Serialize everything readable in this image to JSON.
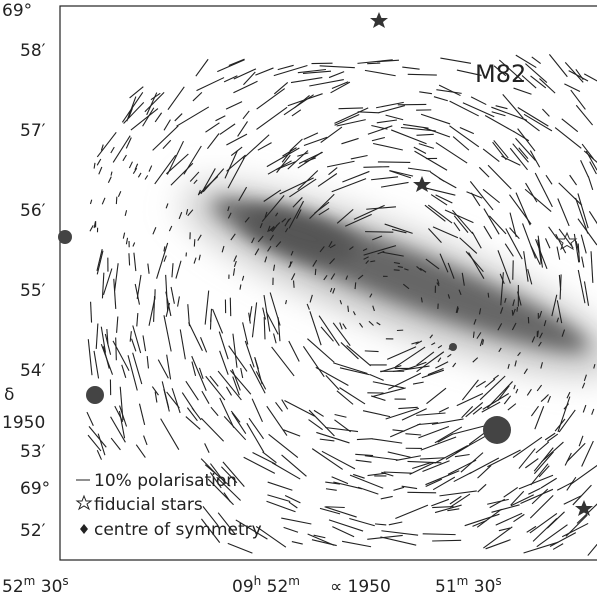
{
  "figure": {
    "title": "M82",
    "y_labels": [
      "69°",
      "58′",
      "57′",
      "56′",
      "55′",
      "54′",
      "δ",
      "1950",
      "53′",
      "69°",
      "52′"
    ],
    "x_labels": [
      {
        "parts": [
          "52",
          "m",
          " 30",
          "s"
        ]
      },
      {
        "parts": [
          "09",
          "h",
          " 52",
          "m"
        ]
      },
      {
        "parts": [
          "∝ 1950"
        ]
      },
      {
        "parts": [
          "51",
          "m",
          " 30",
          "s"
        ]
      }
    ],
    "legend": [
      "10% polarisation",
      "fiducial stars",
      "centre of symmetry"
    ]
  }
}
